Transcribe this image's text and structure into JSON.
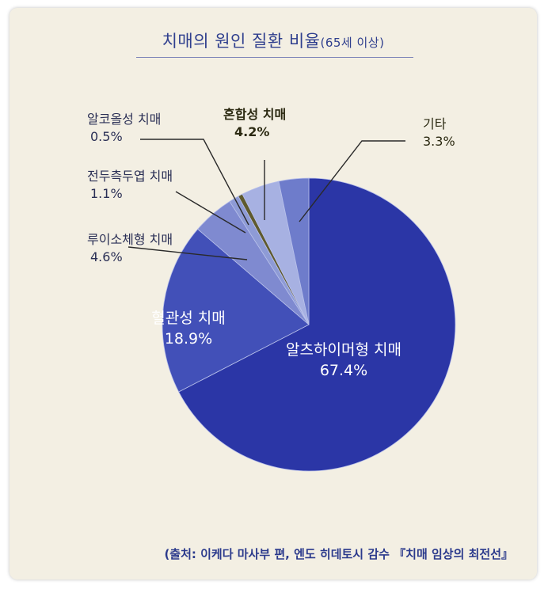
{
  "chart_data": {
    "type": "pie",
    "title": "치매의 원인 질환 비율",
    "subtitle": "(65세 이상)",
    "slices": [
      {
        "label": "알츠하이머형 치매",
        "value": 67.4,
        "value_label": "67.4%",
        "color": "#2b36a6",
        "label_color": "#ffffff"
      },
      {
        "label": "혈관성 치매",
        "value": 18.9,
        "value_label": "18.9%",
        "color": "#4250b8",
        "label_color": "#ffffff"
      },
      {
        "label": "루이소체형 치매",
        "value": 4.6,
        "value_label": "4.6%",
        "color": "#7f8ad0",
        "label_color": "#2a2f55"
      },
      {
        "label": "전두측두엽 치매",
        "value": 1.1,
        "value_label": "1.1%",
        "color": "#8e9bd6",
        "label_color": "#2a2f55"
      },
      {
        "label": "알코올성 치매",
        "value": 0.5,
        "value_label": "0.5%",
        "color": "#5f5a2e",
        "label_color": "#2a2f55"
      },
      {
        "label": "혼합성 치매",
        "value": 4.2,
        "value_label": "4.2%",
        "color": "#a7b1e2",
        "label_color": "#2a2810"
      },
      {
        "label": "기타",
        "value": 3.3,
        "value_label": "3.3%",
        "color": "#6e7ccb",
        "label_color": "#2a2810"
      }
    ]
  },
  "source": "(출처: 이케다 마사부 편, 엔도 히데토시 감수 『치매 임상의 최전선』"
}
